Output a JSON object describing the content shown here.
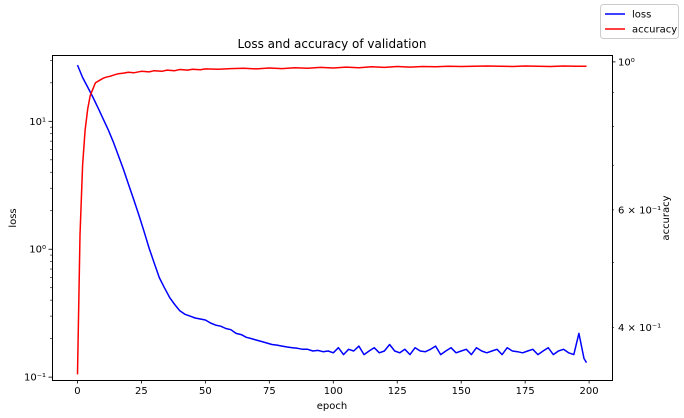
{
  "chart_data": {
    "type": "line",
    "title": "Loss and accuracy of validation",
    "xlabel": "epoch",
    "ylabel_left": "loss",
    "ylabel_right": "accuracy",
    "xlim": [
      -9.95,
      208.95
    ],
    "y_left_scale": "log",
    "y_left_lim": [
      0.095,
      33.0
    ],
    "y_right_scale": "log",
    "y_right_lim": [
      0.3335,
      1.024
    ],
    "x_ticks": [
      0,
      25,
      50,
      75,
      100,
      125,
      150,
      175,
      200
    ],
    "x_tick_labels": [
      "0",
      "25",
      "50",
      "75",
      "100",
      "125",
      "150",
      "175",
      "200"
    ],
    "y_left_major_ticks": [
      0.1,
      1,
      10
    ],
    "y_left_major_labels": [
      "10⁻¹",
      "10⁰",
      "10¹"
    ],
    "y_right_major_ticks": [
      1.0
    ],
    "y_right_major_labels": [
      "10⁰"
    ],
    "y_right_minor_ticks": [
      0.4,
      0.5,
      0.6,
      0.7,
      0.8,
      0.9
    ],
    "y_right_minor_labels": [
      "4 × 10⁻¹",
      "",
      "6 × 10⁻¹",
      "",
      "",
      ""
    ],
    "legend_position": "top-right, outside axes",
    "grid": false,
    "series": [
      {
        "name": "loss",
        "color": "#0000ff",
        "axis": "left",
        "x": [
          0,
          2,
          4,
          6,
          8,
          10,
          12,
          14,
          16,
          18,
          20,
          22,
          24,
          26,
          28,
          30,
          32,
          34,
          36,
          38,
          40,
          42,
          44,
          46,
          48,
          50,
          52,
          54,
          56,
          58,
          60,
          62,
          64,
          66,
          68,
          70,
          72,
          74,
          76,
          78,
          80,
          82,
          84,
          86,
          88,
          90,
          92,
          94,
          96,
          98,
          100,
          102,
          104,
          106,
          108,
          110,
          112,
          114,
          116,
          118,
          120,
          122,
          124,
          126,
          128,
          130,
          132,
          134,
          136,
          138,
          140,
          142,
          144,
          146,
          148,
          150,
          152,
          154,
          156,
          158,
          160,
          162,
          164,
          166,
          168,
          170,
          172,
          174,
          176,
          178,
          180,
          182,
          184,
          186,
          188,
          190,
          192,
          194,
          196,
          198,
          199
        ],
        "values": [
          27.5,
          22,
          18.5,
          15.5,
          12.8,
          10.5,
          8.6,
          6.9,
          5.4,
          4.2,
          3.2,
          2.45,
          1.85,
          1.38,
          1.02,
          0.78,
          0.6,
          0.5,
          0.42,
          0.37,
          0.33,
          0.31,
          0.3,
          0.29,
          0.285,
          0.28,
          0.265,
          0.255,
          0.25,
          0.24,
          0.235,
          0.22,
          0.215,
          0.205,
          0.2,
          0.195,
          0.19,
          0.185,
          0.18,
          0.178,
          0.175,
          0.172,
          0.17,
          0.168,
          0.165,
          0.165,
          0.16,
          0.162,
          0.158,
          0.16,
          0.155,
          0.17,
          0.15,
          0.165,
          0.16,
          0.175,
          0.15,
          0.16,
          0.17,
          0.155,
          0.16,
          0.18,
          0.16,
          0.155,
          0.165,
          0.15,
          0.17,
          0.16,
          0.158,
          0.165,
          0.175,
          0.15,
          0.16,
          0.17,
          0.155,
          0.16,
          0.165,
          0.15,
          0.17,
          0.16,
          0.155,
          0.16,
          0.165,
          0.15,
          0.17,
          0.16,
          0.158,
          0.155,
          0.16,
          0.165,
          0.15,
          0.16,
          0.17,
          0.15,
          0.16,
          0.165,
          0.155,
          0.15,
          0.22,
          0.14,
          0.13
        ]
      },
      {
        "name": "accuracy",
        "color": "#ff0000",
        "axis": "right",
        "x": [
          0,
          1,
          2,
          3,
          4,
          5,
          6,
          7,
          8,
          9,
          10,
          11,
          12,
          13,
          14,
          16,
          18,
          20,
          22,
          25,
          28,
          30,
          33,
          35,
          38,
          40,
          43,
          45,
          48,
          50,
          55,
          60,
          65,
          70,
          75,
          80,
          85,
          90,
          95,
          100,
          105,
          110,
          115,
          120,
          125,
          130,
          135,
          140,
          145,
          150,
          155,
          160,
          165,
          170,
          175,
          180,
          185,
          190,
          195,
          199
        ],
        "values": [
          0.34,
          0.55,
          0.7,
          0.79,
          0.85,
          0.89,
          0.91,
          0.93,
          0.935,
          0.94,
          0.945,
          0.948,
          0.95,
          0.952,
          0.955,
          0.96,
          0.962,
          0.965,
          0.963,
          0.968,
          0.966,
          0.97,
          0.968,
          0.972,
          0.97,
          0.974,
          0.972,
          0.975,
          0.973,
          0.976,
          0.975,
          0.977,
          0.978,
          0.976,
          0.979,
          0.977,
          0.98,
          0.978,
          0.981,
          0.979,
          0.982,
          0.98,
          0.983,
          0.981,
          0.984,
          0.982,
          0.984,
          0.983,
          0.985,
          0.984,
          0.985,
          0.986,
          0.985,
          0.984,
          0.986,
          0.985,
          0.984,
          0.986,
          0.985,
          0.985
        ]
      }
    ]
  }
}
